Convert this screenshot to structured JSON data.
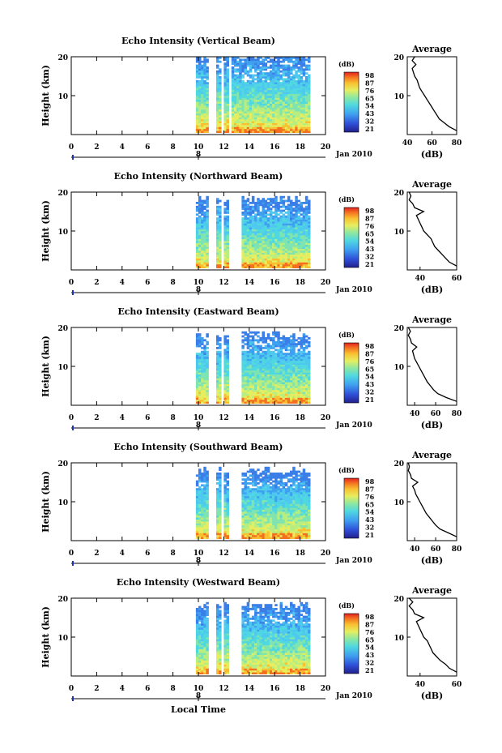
{
  "figure": {
    "xlabel": "Local Time",
    "date_label": "Jan 2010",
    "date_marker": "8",
    "profile_title": "Average",
    "profile_xlabel": "(dB)",
    "colorbar_unit": "(dB)",
    "ylabel": "Height (km)"
  },
  "chart_data": [
    {
      "type": "heatmap",
      "title": "Echo Intensity (Vertical Beam)",
      "ylabel": "Height (km)",
      "xticks": [
        "0",
        "2",
        "4",
        "6",
        "8",
        "10",
        "12",
        "14",
        "16",
        "18",
        "20"
      ],
      "yticks": [
        "10",
        "20"
      ],
      "xlim": [
        0,
        20
      ],
      "ylim": [
        0,
        20
      ],
      "data_start": 9.8,
      "data_end": 18.7,
      "gaps": [
        [
          10.8,
          11.3
        ],
        [
          11.7,
          12.0
        ],
        [
          12.4,
          12.6
        ]
      ],
      "colorbar": {
        "unit": "(dB)",
        "ticks": [
          "98",
          "87",
          "76",
          "65",
          "54",
          "43",
          "32",
          "21"
        ]
      },
      "profile": {
        "title": "Average",
        "xlabel": "(dB)",
        "xticks": [
          "40",
          "60",
          "80"
        ],
        "yticks": [
          "10",
          "20"
        ],
        "xlim": [
          40,
          80
        ],
        "points": [
          [
            80,
            1
          ],
          [
            74,
            2
          ],
          [
            70,
            3
          ],
          [
            66,
            4
          ],
          [
            64,
            5
          ],
          [
            62,
            6
          ],
          [
            60,
            7
          ],
          [
            58,
            8
          ],
          [
            56,
            9
          ],
          [
            54,
            10
          ],
          [
            52,
            11
          ],
          [
            50,
            12
          ],
          [
            49,
            13
          ],
          [
            48,
            14
          ],
          [
            46,
            15
          ],
          [
            45,
            16
          ],
          [
            44,
            17
          ],
          [
            47,
            18
          ],
          [
            44,
            19
          ],
          [
            46,
            20
          ]
        ]
      }
    },
    {
      "type": "heatmap",
      "title": "Echo Intensity (Northward Beam)",
      "ylabel": "Height (km)",
      "xticks": [
        "0",
        "2",
        "4",
        "6",
        "8",
        "10",
        "12",
        "14",
        "16",
        "18",
        "20"
      ],
      "yticks": [
        "10",
        "20"
      ],
      "xlim": [
        0,
        20
      ],
      "ylim": [
        0,
        20
      ],
      "data_start": 9.8,
      "data_end": 18.7,
      "gaps": [
        [
          10.8,
          11.3
        ],
        [
          11.7,
          12.0
        ],
        [
          12.4,
          13.3
        ]
      ],
      "colorbar": {
        "unit": "(dB)",
        "ticks": [
          "98",
          "87",
          "76",
          "65",
          "54",
          "43",
          "32",
          "21"
        ]
      },
      "profile": {
        "title": "Average",
        "xlabel": "(dB)",
        "xticks": [
          "40",
          "60"
        ],
        "yticks": [
          "10",
          "20"
        ],
        "xlim": [
          33,
          60
        ],
        "points": [
          [
            60,
            1
          ],
          [
            56,
            2
          ],
          [
            54,
            3
          ],
          [
            52,
            4
          ],
          [
            50,
            5
          ],
          [
            48,
            6
          ],
          [
            47,
            7
          ],
          [
            46,
            8
          ],
          [
            44,
            9
          ],
          [
            42,
            10
          ],
          [
            41,
            11
          ],
          [
            40,
            12
          ],
          [
            39,
            13
          ],
          [
            38,
            14
          ],
          [
            42,
            15
          ],
          [
            37,
            16
          ],
          [
            36,
            17
          ],
          [
            34,
            18
          ],
          [
            35,
            19
          ],
          [
            34,
            20
          ]
        ]
      }
    },
    {
      "type": "heatmap",
      "title": "Echo Intensity (Eastward Beam)",
      "ylabel": "Height (km)",
      "xticks": [
        "0",
        "2",
        "4",
        "6",
        "8",
        "10",
        "12",
        "14",
        "16",
        "18",
        "20"
      ],
      "yticks": [
        "10",
        "20"
      ],
      "xlim": [
        0,
        20
      ],
      "ylim": [
        0,
        20
      ],
      "data_start": 9.8,
      "data_end": 18.7,
      "gaps": [
        [
          10.8,
          11.3
        ],
        [
          11.7,
          12.0
        ],
        [
          12.4,
          13.3
        ]
      ],
      "colorbar": {
        "unit": "(dB)",
        "ticks": [
          "98",
          "87",
          "76",
          "65",
          "54",
          "43",
          "32",
          "21"
        ]
      },
      "profile": {
        "title": "Average",
        "xlabel": "(dB)",
        "xticks": [
          "40",
          "60",
          "80"
        ],
        "yticks": [
          "10",
          "20"
        ],
        "xlim": [
          33,
          80
        ],
        "points": [
          [
            80,
            1
          ],
          [
            70,
            2
          ],
          [
            62,
            3
          ],
          [
            58,
            4
          ],
          [
            55,
            5
          ],
          [
            52,
            6
          ],
          [
            50,
            7
          ],
          [
            48,
            8
          ],
          [
            46,
            9
          ],
          [
            44,
            10
          ],
          [
            42,
            11
          ],
          [
            40,
            12
          ],
          [
            39,
            13
          ],
          [
            38,
            14
          ],
          [
            42,
            15
          ],
          [
            37,
            16
          ],
          [
            36,
            17
          ],
          [
            34,
            18
          ],
          [
            36,
            19
          ],
          [
            34,
            20
          ]
        ]
      }
    },
    {
      "type": "heatmap",
      "title": "Echo Intensity (Southward Beam)",
      "ylabel": "Height (km)",
      "xticks": [
        "0",
        "2",
        "4",
        "6",
        "8",
        "10",
        "12",
        "14",
        "16",
        "18",
        "20"
      ],
      "yticks": [
        "10",
        "20"
      ],
      "xlim": [
        0,
        20
      ],
      "ylim": [
        0,
        20
      ],
      "data_start": 9.8,
      "data_end": 18.7,
      "gaps": [
        [
          10.8,
          11.3
        ],
        [
          11.7,
          12.0
        ],
        [
          12.4,
          13.3
        ]
      ],
      "colorbar": {
        "unit": "(dB)",
        "ticks": [
          "98",
          "87",
          "76",
          "65",
          "54",
          "43",
          "32",
          "21"
        ]
      },
      "profile": {
        "title": "Average",
        "xlabel": "(dB)",
        "xticks": [
          "40",
          "60",
          "80"
        ],
        "yticks": [
          "10",
          "20"
        ],
        "xlim": [
          33,
          80
        ],
        "points": [
          [
            80,
            1
          ],
          [
            72,
            2
          ],
          [
            64,
            3
          ],
          [
            60,
            4
          ],
          [
            57,
            5
          ],
          [
            54,
            6
          ],
          [
            51,
            7
          ],
          [
            49,
            8
          ],
          [
            47,
            9
          ],
          [
            45,
            10
          ],
          [
            43,
            11
          ],
          [
            41,
            12
          ],
          [
            40,
            13
          ],
          [
            38,
            14
          ],
          [
            43,
            15
          ],
          [
            37,
            16
          ],
          [
            36,
            17
          ],
          [
            34,
            18
          ],
          [
            35,
            19
          ],
          [
            34,
            20
          ]
        ]
      }
    },
    {
      "type": "heatmap",
      "title": "Echo Intensity (Westward Beam)",
      "ylabel": "Height (km)",
      "xticks": [
        "0",
        "2",
        "4",
        "6",
        "8",
        "10",
        "12",
        "14",
        "16",
        "18",
        "20"
      ],
      "yticks": [
        "10",
        "20"
      ],
      "xlim": [
        0,
        20
      ],
      "ylim": [
        0,
        20
      ],
      "data_start": 9.8,
      "data_end": 18.7,
      "gaps": [
        [
          10.8,
          11.3
        ],
        [
          11.7,
          12.0
        ],
        [
          12.4,
          13.3
        ]
      ],
      "colorbar": {
        "unit": "(dB)",
        "ticks": [
          "98",
          "87",
          "76",
          "65",
          "54",
          "43",
          "32",
          "21"
        ]
      },
      "profile": {
        "title": "Average",
        "xlabel": "(dB)",
        "xticks": [
          "40",
          "60"
        ],
        "yticks": [
          "10",
          "20"
        ],
        "xlim": [
          33,
          60
        ],
        "points": [
          [
            60,
            1
          ],
          [
            56,
            2
          ],
          [
            54,
            3
          ],
          [
            51,
            4
          ],
          [
            49,
            5
          ],
          [
            47,
            6
          ],
          [
            46,
            7
          ],
          [
            45,
            8
          ],
          [
            44,
            9
          ],
          [
            42,
            10
          ],
          [
            41,
            11
          ],
          [
            40,
            12
          ],
          [
            39,
            13
          ],
          [
            38,
            14
          ],
          [
            42,
            15
          ],
          [
            37,
            16
          ],
          [
            36,
            17
          ],
          [
            34,
            18
          ],
          [
            36,
            19
          ],
          [
            34,
            20
          ]
        ]
      }
    }
  ]
}
